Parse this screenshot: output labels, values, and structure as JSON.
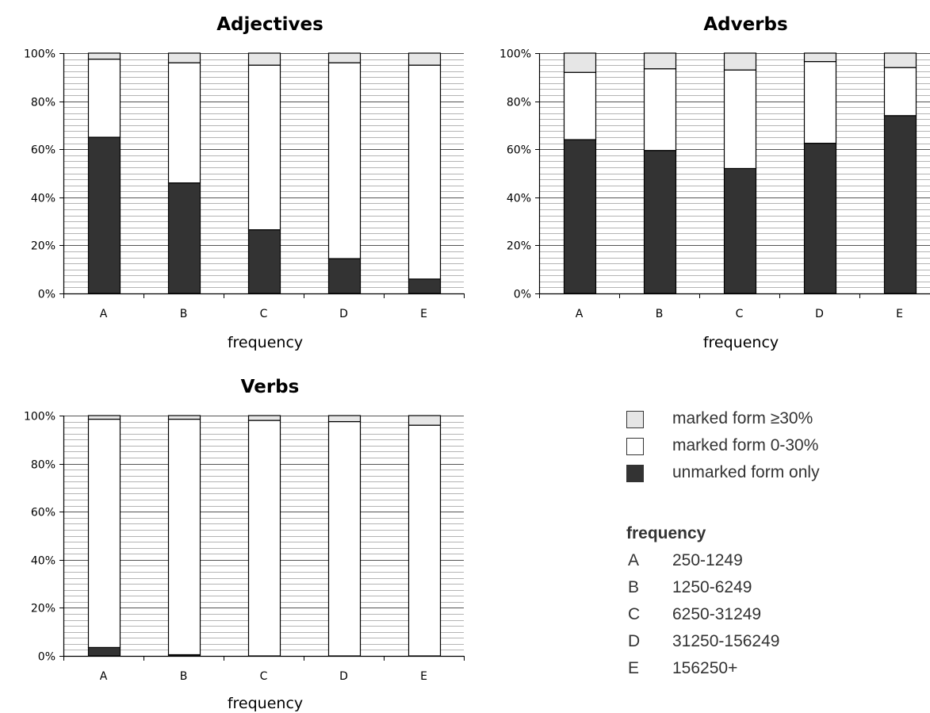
{
  "colors": {
    "unmarked": "#333333",
    "marked_0_30": "#ffffff",
    "marked_30": "#e6e6e6",
    "grid": "#a0a0a0",
    "axis": "#000000"
  },
  "chart_data": [
    {
      "type": "bar",
      "stacked": true,
      "title": "Adjectives",
      "xlabel": "frequency",
      "ylabel": "",
      "ylim": [
        0,
        100
      ],
      "yticks": [
        "0%",
        "20%",
        "40%",
        "60%",
        "80%",
        "100%"
      ],
      "grid": true,
      "categories": [
        "A",
        "B",
        "C",
        "D",
        "E"
      ],
      "series": [
        {
          "name": "unmarked form only",
          "values": [
            65,
            46,
            26.5,
            14.5,
            6
          ]
        },
        {
          "name": "marked form 0-30%",
          "values": [
            32.5,
            50,
            68.5,
            81.5,
            89
          ]
        },
        {
          "name": "marked form ≥30%",
          "values": [
            2.5,
            4,
            5,
            4,
            5
          ]
        }
      ]
    },
    {
      "type": "bar",
      "stacked": true,
      "title": "Adverbs",
      "xlabel": "frequency",
      "ylabel": "",
      "ylim": [
        0,
        100
      ],
      "yticks": [
        "0%",
        "20%",
        "40%",
        "60%",
        "80%",
        "100%"
      ],
      "grid": true,
      "categories": [
        "A",
        "B",
        "C",
        "D",
        "E"
      ],
      "series": [
        {
          "name": "unmarked form only",
          "values": [
            64,
            59.5,
            52,
            62.5,
            74
          ]
        },
        {
          "name": "marked form 0-30%",
          "values": [
            28,
            34,
            41,
            34,
            20
          ]
        },
        {
          "name": "marked form ≥30%",
          "values": [
            8,
            6.5,
            7,
            3.5,
            6
          ]
        }
      ]
    },
    {
      "type": "bar",
      "stacked": true,
      "title": "Verbs",
      "xlabel": "frequency",
      "ylabel": "",
      "ylim": [
        0,
        100
      ],
      "yticks": [
        "0%",
        "20%",
        "40%",
        "60%",
        "80%",
        "100%"
      ],
      "grid": true,
      "categories": [
        "A",
        "B",
        "C",
        "D",
        "E"
      ],
      "series": [
        {
          "name": "unmarked form only",
          "values": [
            3.5,
            0.5,
            0,
            0,
            0
          ]
        },
        {
          "name": "marked form 0-30%",
          "values": [
            95,
            98,
            98,
            97.5,
            96
          ]
        },
        {
          "name": "marked form ≥30%",
          "values": [
            1.5,
            1.5,
            2,
            2.5,
            4
          ]
        }
      ]
    }
  ],
  "legend": {
    "items": [
      {
        "label": "marked form ≥30%",
        "color": "#e6e6e6"
      },
      {
        "label": "marked form 0-30%",
        "color": "#ffffff"
      },
      {
        "label": "unmarked form only",
        "color": "#333333"
      }
    ],
    "frequency_title": "frequency",
    "frequency_ranges": [
      {
        "key": "A",
        "range": "250-1249"
      },
      {
        "key": "B",
        "range": "1250-6249"
      },
      {
        "key": "C",
        "range": "6250-31249"
      },
      {
        "key": "D",
        "range": "31250-156249"
      },
      {
        "key": "E",
        "range": "156250+"
      }
    ]
  }
}
